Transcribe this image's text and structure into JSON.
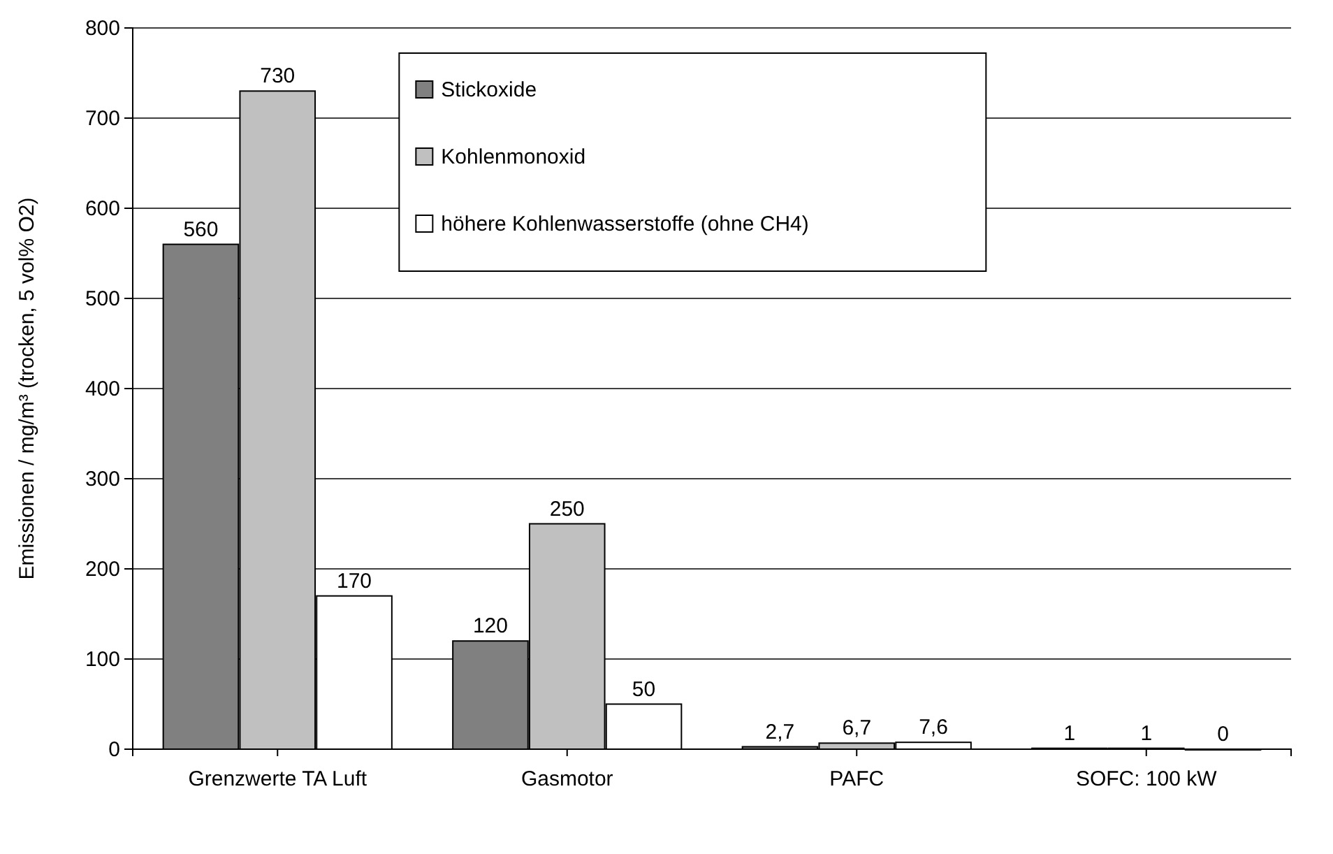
{
  "chart_data": {
    "type": "bar",
    "ylabel": "Emissionen / mg/m³ (trocken, 5 vol% O2)",
    "categories": [
      "Grenzwerte TA Luft",
      "Gasmotor",
      "PAFC",
      "SOFC: 100 kW"
    ],
    "series": [
      {
        "name": "Stickoxide",
        "color": "#808080",
        "values": [
          560,
          120,
          2.7,
          1
        ],
        "value_labels": [
          "560",
          "120",
          "2,7",
          "1"
        ]
      },
      {
        "name": "Kohlenmonoxid",
        "color": "#c0c0c0",
        "values": [
          730,
          250,
          6.7,
          1
        ],
        "value_labels": [
          "730",
          "250",
          "6,7",
          "1"
        ]
      },
      {
        "name": "höhere Kohlenwasserstoffe (ohne CH4)",
        "color": "#ffffff",
        "values": [
          170,
          50,
          7.6,
          0
        ],
        "value_labels": [
          "170",
          "50",
          "7,6",
          "0"
        ]
      }
    ],
    "ylim": [
      0,
      800
    ],
    "yticks": [
      0,
      100,
      200,
      300,
      400,
      500,
      600,
      700,
      800
    ],
    "grid": "y",
    "legend": "top"
  }
}
